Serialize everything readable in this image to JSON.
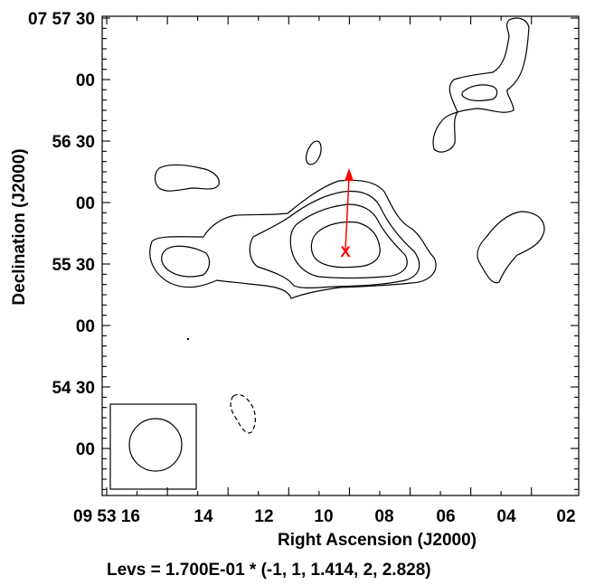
{
  "chart_data": {
    "type": "contour",
    "xlabel": "Right Ascension (J2000)",
    "ylabel": "Declination (J2000)",
    "caption": "Levs = 1.700E-01 * (-1, 1, 1.414, 2, 2.828)",
    "x_ticks": [
      "09 53 16",
      "14",
      "12",
      "10",
      "08",
      "06",
      "04",
      "02"
    ],
    "y_ticks": [
      "07 57 30",
      "00",
      "56 30",
      "00",
      "55 30",
      "00",
      "54 30",
      "00"
    ],
    "contour_base": 0.17,
    "contour_multipliers": [
      -1,
      1,
      1.414,
      2,
      2.828
    ],
    "marker": {
      "symbol": "X",
      "color": "#ff0000"
    },
    "vector": {
      "color": "#ff0000"
    },
    "beam": {
      "shape": "circle"
    },
    "colors": {
      "marker": "#ff0000",
      "contour": "#000000"
    }
  }
}
